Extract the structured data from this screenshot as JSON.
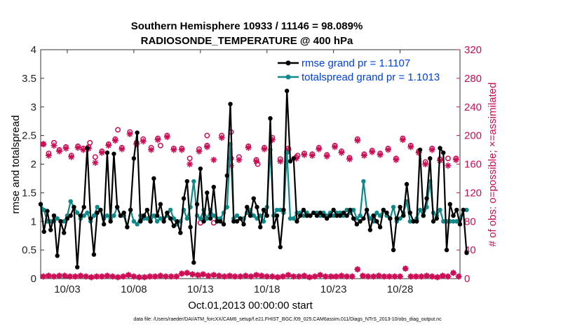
{
  "chart_data": {
    "type": "line",
    "title": [
      "Southern Hemisphere 10933 / 11146 = 98.089%",
      "RADIOSONDE_TEMPERATURE @ 400 hPa"
    ],
    "xlabel": "Oct.01,2013 00:00:00 start",
    "ylabel": "rmse and totalspread",
    "y2label": "# of obs: o=possible; ×=assimilated",
    "xlim": [
      1,
      32.5
    ],
    "ylim": [
      0,
      4
    ],
    "y2lim": [
      0,
      320
    ],
    "xticks": [
      3,
      8,
      13,
      18,
      23,
      28
    ],
    "xtick_labels": [
      "10/03",
      "10/08",
      "10/13",
      "10/18",
      "10/23",
      "10/28"
    ],
    "yticks": [
      0,
      0.5,
      1,
      1.5,
      2,
      2.5,
      3,
      3.5,
      4
    ],
    "ytick_labels": [
      "0",
      "0.5",
      "1",
      "1.5",
      "2",
      "2.5",
      "3",
      "3.5",
      "4"
    ],
    "y2ticks": [
      0,
      40,
      80,
      120,
      160,
      200,
      240,
      280,
      320
    ],
    "y2tick_labels": [
      "0",
      "40",
      "80",
      "120",
      "160",
      "200",
      "240",
      "280",
      "320"
    ],
    "legend_position": "top-right",
    "series": [
      {
        "name": "rmse grand pr = 1.1107",
        "color": "#000000",
        "axis": "left",
        "values": [
          1.3,
          0.82,
          1.18,
          0.85,
          1.1,
          0.4,
          1.0,
          0.8,
          1.05,
          1.1,
          1.25,
          0.2,
          1.1,
          1.25,
          2.28,
          1.05,
          0.42,
          1.15,
          1.2,
          0.95,
          2.2,
          1.0,
          2.18,
          1.25,
          1.1,
          1.15,
          0.9,
          1.2,
          2.1,
          2.55,
          1.0,
          1.1,
          1.2,
          1.0,
          1.75,
          1.1,
          1.3,
          1.0,
          1.15,
          1.05,
          0.92,
          1.0,
          0.8,
          1.4,
          1.7,
          0.9,
          0.28,
          1.3,
          1.92,
          1.0,
          1.5,
          1.05,
          1.6,
          1.0,
          1.0,
          0.95,
          1.8,
          3.05,
          1.0,
          1.0,
          1.05,
          0.95,
          1.25,
          1.1,
          1.4,
          1.25,
          0.9,
          1.2,
          1.1,
          2.8,
          0.9,
          1.1,
          0.55,
          1.2,
          3.28,
          2.05,
          2.1,
          1.0,
          1.1,
          1.2,
          1.1,
          1.1,
          1.15,
          1.1,
          1.15,
          1.1,
          1.05,
          1.1,
          1.2,
          1.1,
          1.1,
          1.15,
          1.1,
          1.2,
          1.05,
          0.95,
          1.0,
          1.05,
          1.2,
          0.85,
          1.1,
          1.0,
          0.9,
          1.2,
          1.15,
          1.05,
          0.5,
          1.05,
          1.25,
          1.1,
          1.65,
          1.15,
          1.0,
          1.0,
          2.25,
          1.1,
          1.4,
          2.1,
          1.0,
          1.05,
          2.28,
          2.2,
          0.5,
          1.3,
          1.1,
          1.2,
          0.95,
          1.2,
          0.45
        ],
        "x_step": 0.25
      },
      {
        "name": "totalspread grand pr = 1.1013",
        "color": "#0e8a8a",
        "axis": "left",
        "values": [
          1.3,
          1.2,
          1.0,
          1.0,
          1.0,
          1.05,
          1.0,
          1.0,
          1.1,
          1.35,
          1.25,
          1.15,
          1.05,
          1.1,
          1.15,
          1.0,
          1.1,
          1.25,
          1.2,
          1.05,
          1.1,
          1.05,
          1.1,
          1.25,
          1.1,
          1.1,
          0.9,
          1.2,
          1.0,
          0.95,
          1.1,
          1.05,
          1.05,
          1.0,
          1.1,
          1.0,
          1.05,
          1.05,
          1.1,
          1.2,
          1.05,
          0.95,
          1.0,
          1.2,
          1.05,
          1.25,
          1.7,
          1.1,
          1.05,
          1.2,
          1.05,
          1.2,
          1.1,
          1.05,
          1.05,
          1.15,
          1.25,
          2.35,
          1.05,
          1.1,
          1.05,
          1.05,
          1.15,
          1.2,
          1.1,
          1.05,
          1.1,
          1.0,
          1.25,
          2.25,
          1.1,
          1.2,
          1.2,
          1.15,
          2.2,
          1.05,
          1.05,
          1.15,
          1.15,
          1.1,
          1.15,
          1.1,
          1.15,
          1.15,
          1.1,
          1.15,
          1.1,
          1.15,
          1.1,
          1.15,
          1.15,
          1.1,
          1.2,
          1.15,
          1.2,
          1.05,
          1.1,
          1.7,
          1.2,
          1.05,
          1.0,
          1.15,
          1.1,
          1.2,
          1.1,
          1.05,
          1.25,
          1.0,
          1.05,
          1.15,
          1.35,
          1.0,
          1.0,
          1.05,
          1.2,
          1.1,
          1.25,
          1.7,
          1.15,
          1.1,
          1.2,
          1.0,
          1.0,
          1.0,
          1.0,
          1.0,
          1.05,
          1.2,
          1.2
        ],
        "x_step": 0.25
      },
      {
        "name": "possible",
        "color": "#cc0d55",
        "axis": "right",
        "marker": "circle",
        "x": [
          1.2,
          1.6,
          2.0,
          2.4,
          2.9,
          3.3,
          3.8,
          4.2,
          4.6,
          5.1,
          5.6,
          6.1,
          6.6,
          7.1,
          7.7,
          8.2,
          8.7,
          9.3,
          9.8,
          10.5,
          11.0,
          11.6,
          12.2,
          12.9,
          13.5,
          14.0,
          14.6,
          15.3,
          15.9,
          16.6,
          17.2,
          17.8,
          18.4,
          19.0,
          19.6,
          20.2,
          20.8,
          21.4,
          21.9,
          22.5,
          23.1,
          23.6,
          24.2,
          24.8,
          25.3,
          25.9,
          26.5,
          27.1,
          27.7,
          28.2,
          28.8,
          29.4,
          29.9,
          30.4,
          31.0,
          31.6,
          32.2
        ],
        "values": [
          188,
          175,
          190,
          180,
          184,
          172,
          185,
          182,
          184,
          170,
          178,
          188,
          195,
          183,
          205,
          190,
          195,
          183,
          196,
          200,
          182,
          182,
          168,
          181,
          186,
          78,
          200,
          168,
          170,
          185,
          166,
          183,
          197,
          167,
          182,
          170,
          175,
          174,
          183,
          173,
          186,
          178,
          169,
          195,
          174,
          179,
          175,
          182,
          168,
          196,
          186,
          178,
          163,
          182,
          167,
          168,
          168
        ],
        "extra_circles": [
          [
            4.7,
            190
          ],
          [
            6.8,
            208
          ],
          [
            10.0,
            186
          ],
          [
            13.5,
            200
          ],
          [
            13.0,
            78
          ],
          [
            15.3,
            205
          ],
          [
            17.3,
            160
          ],
          [
            19.5,
            177
          ],
          [
            20.3,
            172
          ]
        ]
      },
      {
        "name": "assimilated",
        "color": "#cc0d55",
        "axis": "right",
        "marker": "star",
        "x": [
          1.2,
          1.6,
          2.0,
          2.4,
          2.9,
          3.3,
          3.8,
          4.2,
          4.6,
          5.1,
          5.6,
          6.1,
          6.6,
          7.1,
          7.7,
          8.2,
          8.7,
          9.3,
          9.8,
          10.5,
          11.0,
          11.6,
          12.2,
          12.9,
          13.5,
          14.0,
          14.6,
          15.3,
          15.9,
          16.6,
          17.2,
          17.8,
          18.4,
          19.0,
          19.6,
          20.2,
          20.8,
          21.4,
          21.9,
          22.5,
          23.1,
          23.6,
          24.2,
          24.8,
          25.3,
          25.9,
          26.5,
          27.1,
          27.7,
          28.2,
          28.8,
          29.4,
          29.9,
          30.4,
          31.0,
          31.6,
          32.2
        ],
        "values": [
          188,
          172,
          186,
          178,
          182,
          170,
          183,
          180,
          182,
          162,
          176,
          186,
          193,
          181,
          202,
          188,
          192,
          180,
          194,
          198,
          180,
          180,
          160,
          178,
          184,
          166,
          197,
          158,
          166,
          183,
          164,
          181,
          194,
          164,
          180,
          168,
          173,
          172,
          181,
          171,
          184,
          176,
          167,
          193,
          172,
          177,
          173,
          180,
          166,
          194,
          184,
          176,
          160,
          180,
          165,
          158,
          166
        ],
        "low_x": [
          1.2,
          1.6,
          2.0,
          2.4,
          2.8,
          3.2,
          3.6,
          4.0,
          4.4,
          4.8,
          5.2,
          5.6,
          6.0,
          6.4,
          6.8,
          7.2,
          7.6,
          8.0,
          8.4,
          8.8,
          9.2,
          9.6,
          10.0,
          10.4,
          10.8,
          11.2,
          11.6,
          12.0,
          12.4,
          12.8,
          13.2,
          13.6,
          14.0,
          14.4,
          14.8,
          15.2,
          15.6,
          16.0,
          16.4,
          16.8,
          17.2,
          17.6,
          18.0,
          18.4,
          18.8,
          19.2,
          19.6,
          20.0,
          20.4,
          20.8,
          21.2,
          21.6,
          22.0,
          22.4,
          22.8,
          23.2,
          23.6,
          24.0,
          24.4,
          24.8,
          25.2,
          25.6,
          26.0,
          26.4,
          26.8,
          27.2,
          27.6,
          28.0,
          28.4,
          28.8,
          29.2,
          29.6,
          30.0,
          30.4,
          30.8,
          31.2,
          31.6,
          32.0,
          32.4
        ],
        "low_values": [
          3,
          4,
          3,
          4,
          4,
          3,
          3,
          4,
          3,
          2,
          3,
          3,
          4,
          3,
          2,
          3,
          5,
          3,
          2,
          2,
          3,
          3,
          4,
          3,
          3,
          3,
          7,
          8,
          6,
          5,
          6,
          4,
          5,
          4,
          3,
          4,
          3,
          3,
          4,
          3,
          5,
          4,
          3,
          3,
          2,
          3,
          5,
          3,
          3,
          4,
          2,
          3,
          5,
          3,
          3,
          3,
          4,
          3,
          3,
          13,
          4,
          3,
          3,
          4,
          3,
          3,
          3,
          3,
          14,
          3,
          3,
          3,
          4,
          3,
          2,
          4,
          3,
          8,
          3
        ]
      }
    ]
  },
  "footer": "data file: /Users/raeder/DAI/ATM_forcXX/CAM6_setup/f.e21.FHIST_BGC.f09_025.CAM6assim.011/Diags_NTrS_2013-10/obs_diag_output.nc",
  "colors": {
    "rmse": "#000000",
    "spread": "#0e8a8a",
    "obs": "#cc0d55",
    "legend_text": "#0040e0"
  }
}
